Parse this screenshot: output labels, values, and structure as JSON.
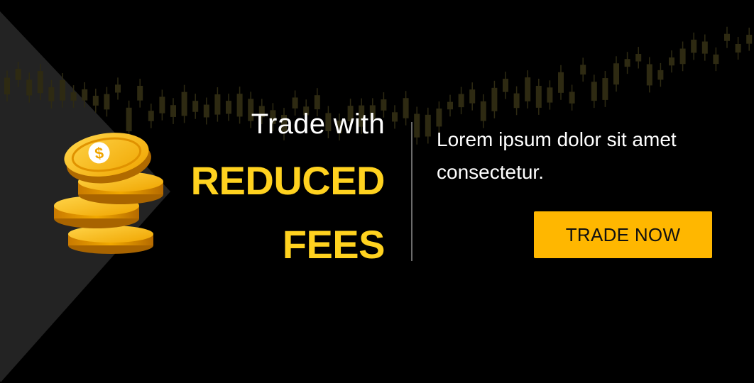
{
  "headline": {
    "line1": "Trade with",
    "line2": "REDUCED",
    "line3": "FEES"
  },
  "description": "Lorem ipsum dolor sit amet consectetur.",
  "cta": {
    "label": "TRADE NOW"
  },
  "coin_symbol": "$",
  "colors": {
    "background": "#000000",
    "accent_yellow": "#FFD21F",
    "button": "#FFB700",
    "triangle_panel": "#262626",
    "candles": "#2e2a12"
  },
  "icons": {
    "coins": "coin-stack-icon",
    "background": "candlestick-chart-background"
  }
}
